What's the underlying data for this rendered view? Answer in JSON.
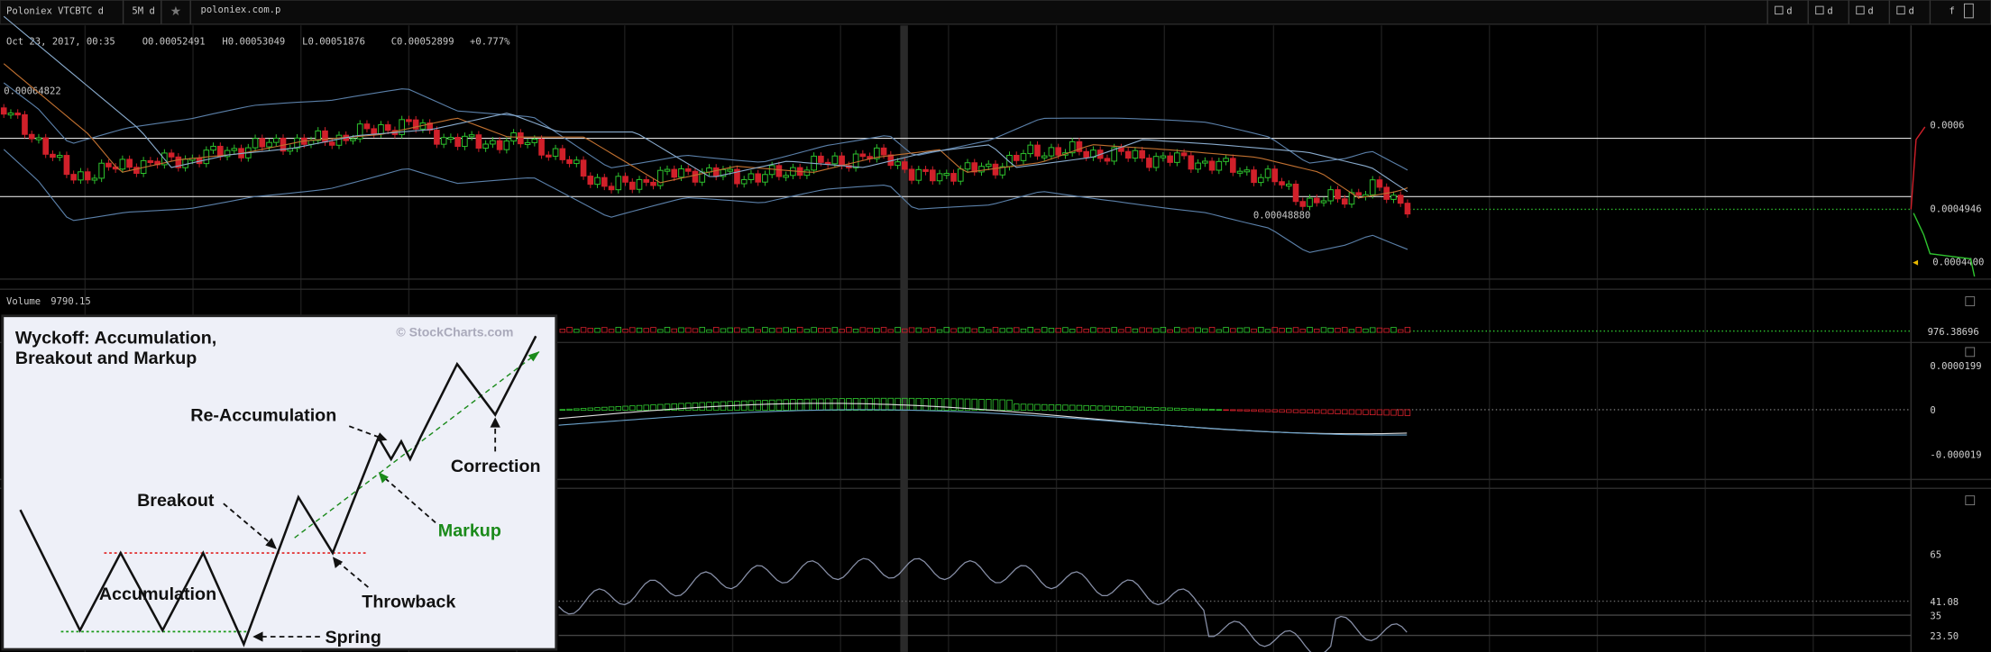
{
  "toolbar": {
    "symbol": "Poloniex VTCBTC d",
    "interval": "5M d",
    "site": "poloniex.com.p",
    "icons": [
      "d",
      "d",
      "d",
      "d",
      "f"
    ]
  },
  "header": {
    "date": "Oct 23, 2017, 00:35",
    "open": "O0.00052491",
    "high": "H0.00053049",
    "low": "L0.00051876",
    "close": "C0.00052899",
    "change": "+0.777%"
  },
  "price_panel": {
    "high_label": "0.00064822",
    "low_label": "0.00048880",
    "axis": [
      "0.0006",
      "0.0004946",
      "0.0004400"
    ]
  },
  "volume_panel": {
    "label": "Volume",
    "value": "9790.15",
    "axis": "976.38696"
  },
  "macd_panel": {
    "axis": [
      "0.0000199",
      "0",
      "-0.000019"
    ]
  },
  "rsi_panel": {
    "axis": [
      "65",
      "41.08",
      "35",
      "23.50"
    ]
  },
  "inset": {
    "title_lines": [
      "Wyckoff: Accumulation,",
      "Breakout and Markup"
    ],
    "credit": "© StockCharts.com",
    "labels": {
      "reaccumulation": "Re-Accumulation",
      "breakout": "Breakout",
      "correction": "Correction",
      "markup": "Markup",
      "accumulation": "Accumulation",
      "throwback": "Throwback",
      "spring": "Spring"
    }
  }
}
